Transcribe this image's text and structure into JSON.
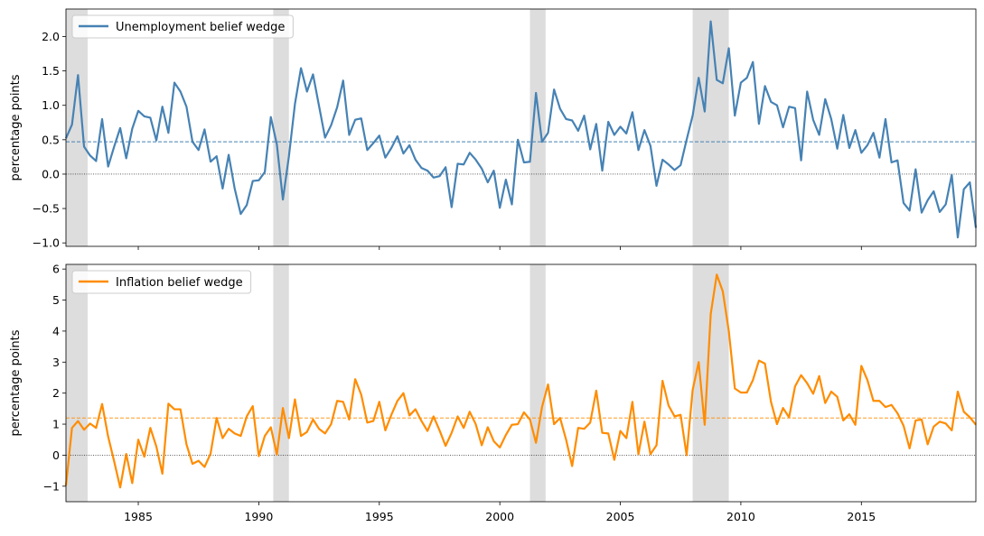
{
  "chart_data": [
    {
      "type": "line",
      "ylabel": "percentage points",
      "xlim": [
        1982.0,
        2019.75
      ],
      "ylim": [
        -1.05,
        2.4
      ],
      "yticks": [
        -1.0,
        -0.5,
        0.0,
        0.5,
        1.0,
        1.5,
        2.0
      ],
      "ytick_labels": [
        "−1.0",
        "−0.5",
        "0.0",
        "0.5",
        "1.0",
        "1.5",
        "2.0"
      ],
      "mean_line": 0.47,
      "zero_line": 0,
      "legend": "upper-left",
      "series": [
        {
          "name": "Unemployment belief wedge",
          "color": "#4682b4",
          "x_start": 1982.0,
          "x_step": 0.25,
          "values": [
            0.52,
            0.72,
            1.44,
            0.4,
            0.27,
            0.19,
            0.8,
            0.11,
            0.4,
            0.67,
            0.23,
            0.66,
            0.92,
            0.84,
            0.82,
            0.49,
            0.98,
            0.6,
            1.33,
            1.2,
            0.98,
            0.47,
            0.35,
            0.65,
            0.18,
            0.26,
            -0.21,
            0.28,
            -0.21,
            -0.58,
            -0.45,
            -0.1,
            -0.09,
            0.03,
            0.83,
            0.43,
            -0.37,
            0.26,
            1.02,
            1.54,
            1.2,
            1.45,
            0.99,
            0.53,
            0.71,
            0.97,
            1.36,
            0.57,
            0.79,
            0.81,
            0.35,
            0.45,
            0.56,
            0.24,
            0.38,
            0.55,
            0.3,
            0.42,
            0.21,
            0.09,
            0.05,
            -0.05,
            -0.03,
            0.1,
            -0.48,
            0.15,
            0.14,
            0.31,
            0.21,
            0.08,
            -0.12,
            0.05,
            -0.49,
            -0.08,
            -0.44,
            0.5,
            0.17,
            0.18,
            1.18,
            0.47,
            0.6,
            1.23,
            0.95,
            0.8,
            0.78,
            0.63,
            0.85,
            0.36,
            0.73,
            0.05,
            0.76,
            0.57,
            0.69,
            0.59,
            0.9,
            0.35,
            0.64,
            0.41,
            -0.17,
            0.21,
            0.14,
            0.06,
            0.13,
            0.5,
            0.85,
            1.4,
            0.91,
            2.22,
            1.37,
            1.32,
            1.83,
            0.85,
            1.33,
            1.4,
            1.63,
            0.73,
            1.28,
            1.05,
            1.0,
            0.68,
            0.98,
            0.96,
            0.2,
            1.2,
            0.79,
            0.57,
            1.09,
            0.8,
            0.37,
            0.86,
            0.38,
            0.64,
            0.31,
            0.42,
            0.6,
            0.24,
            0.8,
            0.17,
            0.2,
            -0.42,
            -0.53,
            0.07,
            -0.56,
            -0.38,
            -0.25,
            -0.55,
            -0.44,
            -0.01,
            -0.92,
            -0.22,
            -0.12,
            -0.78
          ]
        }
      ],
      "recessions": [
        [
          1982.0,
          1982.9
        ],
        [
          1990.6,
          1991.25
        ],
        [
          2001.25,
          2001.9
        ],
        [
          2008.0,
          2009.5
        ]
      ]
    },
    {
      "type": "line",
      "ylabel": "percentage points",
      "xlim": [
        1982.0,
        2019.75
      ],
      "ylim": [
        -1.5,
        6.15
      ],
      "yticks": [
        -1,
        0,
        1,
        2,
        3,
        4,
        5,
        6
      ],
      "ytick_labels": [
        "−1",
        "0",
        "1",
        "2",
        "3",
        "4",
        "5",
        "6"
      ],
      "xticks": [
        1985,
        1990,
        1995,
        2000,
        2005,
        2010,
        2015
      ],
      "xtick_labels": [
        "1985",
        "1990",
        "1995",
        "2000",
        "2005",
        "2010",
        "2015"
      ],
      "mean_line": 1.2,
      "zero_line": 0,
      "legend": "upper-left",
      "series": [
        {
          "name": "Inflation belief wedge",
          "color": "#ff8c00",
          "x_start": 1982.0,
          "x_step": 0.25,
          "values": [
            -0.98,
            0.88,
            1.1,
            0.82,
            1.02,
            0.88,
            1.65,
            0.6,
            -0.2,
            -1.04,
            0.04,
            -0.9,
            0.5,
            -0.05,
            0.88,
            0.28,
            -0.6,
            1.66,
            1.48,
            1.48,
            0.35,
            -0.28,
            -0.18,
            -0.38,
            0.05,
            1.2,
            0.55,
            0.85,
            0.7,
            0.62,
            1.25,
            1.58,
            -0.03,
            0.62,
            0.9,
            0.02,
            1.52,
            0.55,
            1.8,
            0.62,
            0.75,
            1.15,
            0.85,
            0.7,
            1.0,
            1.75,
            1.72,
            1.15,
            2.45,
            1.95,
            1.05,
            1.1,
            1.72,
            0.8,
            1.3,
            1.75,
            2.0,
            1.28,
            1.48,
            1.1,
            0.78,
            1.25,
            0.8,
            0.3,
            0.72,
            1.25,
            0.88,
            1.4,
            1.0,
            0.32,
            0.9,
            0.45,
            0.25,
            0.65,
            0.98,
            1.0,
            1.38,
            1.15,
            0.4,
            1.55,
            2.28,
            1.0,
            1.2,
            0.5,
            -0.35,
            0.88,
            0.85,
            1.05,
            2.08,
            0.72,
            0.7,
            -0.15,
            0.78,
            0.55,
            1.72,
            0.03,
            1.08,
            0.03,
            0.32,
            2.4,
            1.6,
            1.25,
            1.3,
            0.0,
            2.1,
            3.0,
            0.98,
            4.55,
            5.82,
            5.28,
            4.0,
            2.15,
            2.02,
            2.02,
            2.42,
            3.05,
            2.95,
            1.72,
            1.0,
            1.52,
            1.22,
            2.22,
            2.58,
            2.32,
            1.98,
            2.55,
            1.68,
            2.05,
            1.88,
            1.12,
            1.32,
            0.98,
            2.88,
            2.42,
            1.75,
            1.75,
            1.55,
            1.62,
            1.35,
            0.95,
            0.22,
            1.12,
            1.15,
            0.35,
            0.92,
            1.08,
            1.02,
            0.8,
            2.05,
            1.4,
            1.22,
            0.98
          ]
        }
      ],
      "recessions": [
        [
          1982.0,
          1982.9
        ],
        [
          1990.6,
          1991.25
        ],
        [
          2001.25,
          2001.9
        ],
        [
          2008.0,
          2009.5
        ]
      ]
    }
  ]
}
